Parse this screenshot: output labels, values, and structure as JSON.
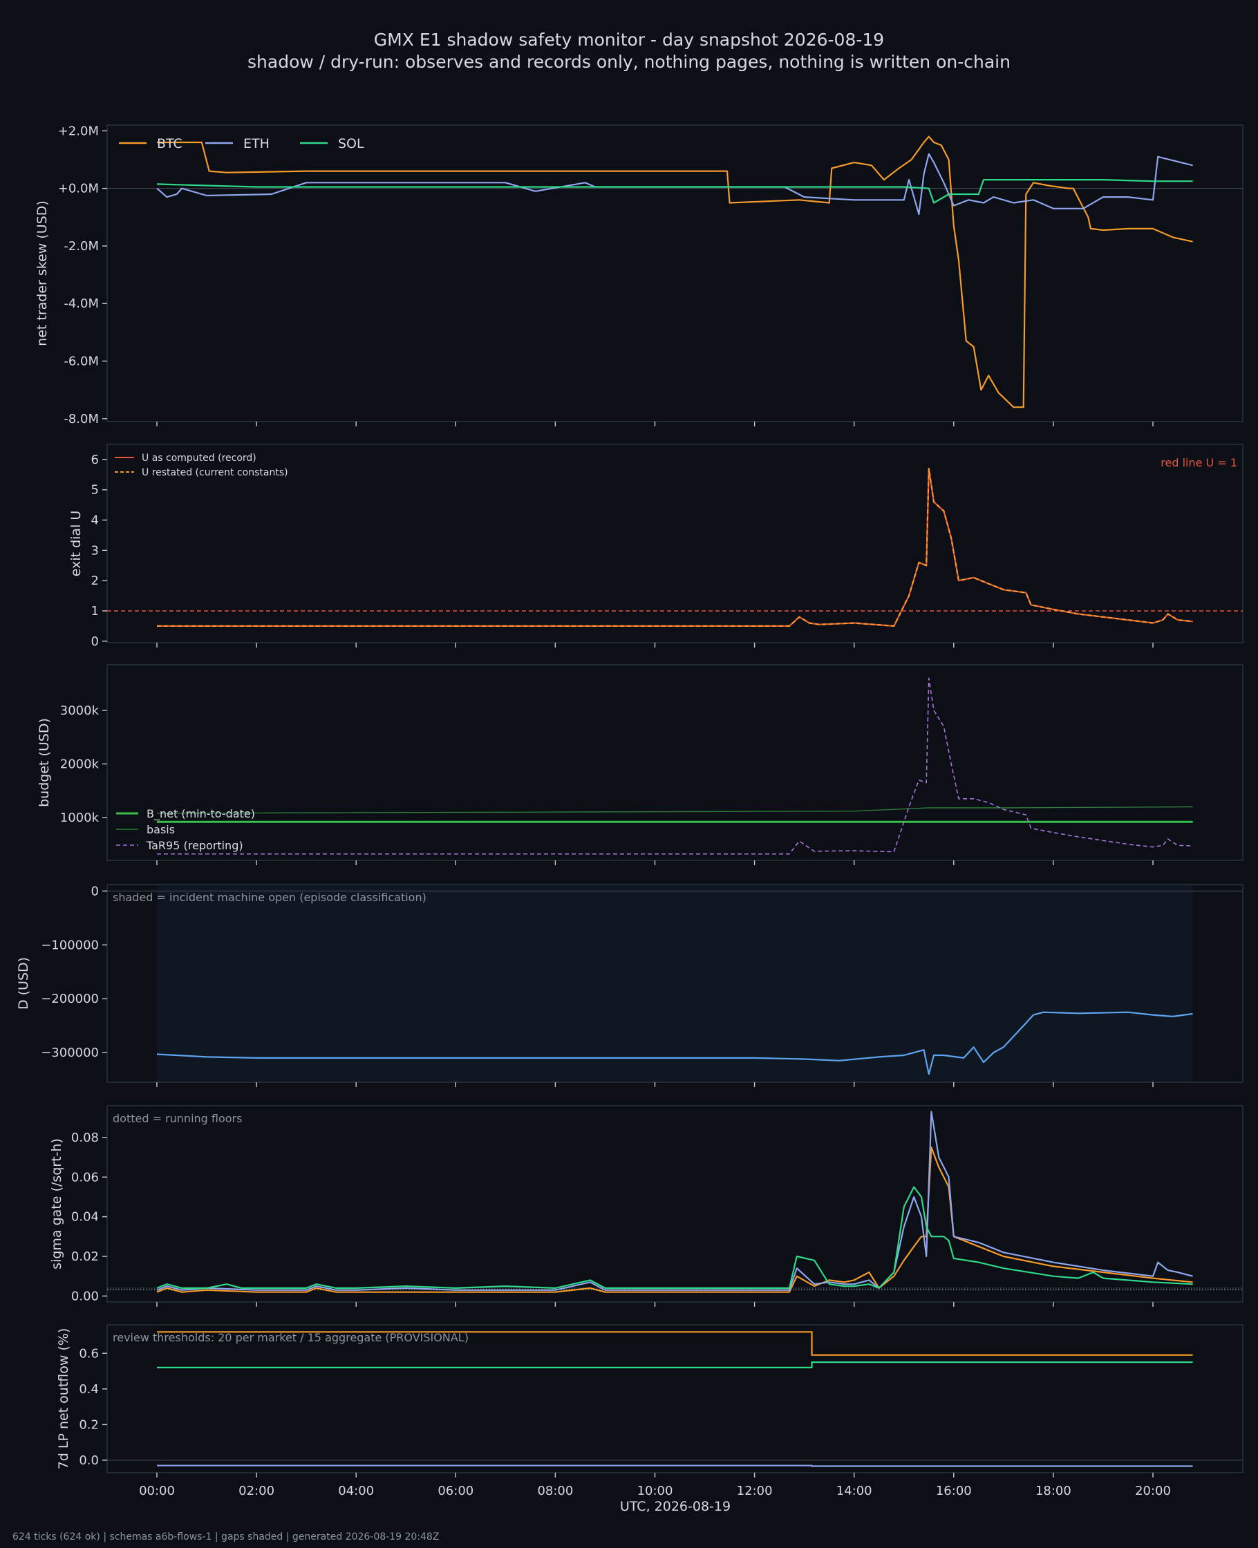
{
  "title": "GMX E1 shadow safety monitor - day snapshot 2026-08-19",
  "subtitle": "shadow / dry-run: observes and records only, nothing pages, nothing is written on-chain",
  "footer": "624 ticks (624 ok) | schemas a6b-flows-1 | gaps shaded | generated 2026-08-19 20:48Z",
  "xlabel": "UTC, 2026-08-19",
  "colors": {
    "btc": "#f59a2b",
    "eth": "#8fa6ee",
    "sol": "#2fd98a",
    "red": "#e8563f",
    "green": "#35c04b",
    "purple": "#a874d6",
    "blue": "#5fa4f0",
    "bg": "#0c0f15"
  },
  "chart_data": [
    {
      "type": "line",
      "ylabel": "net trader skew (USD)",
      "ylim": [
        -8.1,
        2.2
      ],
      "yticks": [
        2,
        0,
        -2,
        -4,
        -6,
        -8
      ],
      "yticklabels": [
        "+2.0M",
        "+0.0M",
        "-2.0M",
        "-4.0M",
        "-6.0M",
        "-8.0M"
      ],
      "legend": "top-left",
      "zero_line": true,
      "series": [
        {
          "name": "BTC",
          "color": "#f59a2b",
          "x": [
            0,
            0.9,
            1.05,
            1.4,
            3,
            6.3,
            8.9,
            11.45,
            11.5,
            12.9,
            13.5,
            13.55,
            14,
            14.35,
            14.6,
            14.9,
            15.15,
            15.4,
            15.5,
            15.6,
            15.75,
            15.9,
            16,
            16.1,
            16.25,
            16.4,
            16.55,
            16.7,
            16.9,
            17.2,
            17.4,
            17.45,
            17.6,
            17.9,
            18.3,
            18.4,
            18.7,
            18.75,
            19,
            19.5,
            20,
            20.4,
            20.8
          ],
          "values": [
            1.6,
            1.6,
            0.6,
            0.55,
            0.6,
            0.6,
            0.6,
            0.6,
            -0.5,
            -0.4,
            -0.5,
            0.7,
            0.9,
            0.8,
            0.3,
            0.7,
            1,
            1.6,
            1.8,
            1.6,
            1.5,
            1,
            -1.3,
            -2.5,
            -5.3,
            -5.5,
            -7.0,
            -6.5,
            -7.1,
            -7.6,
            -7.6,
            -0.2,
            0.2,
            0.1,
            0.0,
            0.0,
            -1.0,
            -1.4,
            -1.45,
            -1.4,
            -1.4,
            -1.7,
            -1.85
          ]
        },
        {
          "name": "ETH",
          "color": "#8fa6ee",
          "x": [
            0,
            0.2,
            0.4,
            0.5,
            1.0,
            2.3,
            3.0,
            4.0,
            7.0,
            7.6,
            8.6,
            8.8,
            9.5,
            12.6,
            13.0,
            14.0,
            15.0,
            15.1,
            15.3,
            15.4,
            15.5,
            15.6,
            15.8,
            16.0,
            16.3,
            16.6,
            16.8,
            17.2,
            17.6,
            18.0,
            18.6,
            19.0,
            19.5,
            20.0,
            20.1,
            20.8
          ],
          "values": [
            0,
            -0.3,
            -0.2,
            0,
            -0.25,
            -0.2,
            0.2,
            0.2,
            0.2,
            -0.1,
            0.2,
            0.05,
            0.05,
            0.05,
            -0.3,
            -0.4,
            -0.4,
            0.3,
            -0.9,
            0.5,
            1.2,
            0.9,
            0.2,
            -0.6,
            -0.4,
            -0.5,
            -0.3,
            -0.5,
            -0.4,
            -0.7,
            -0.7,
            -0.3,
            -0.3,
            -0.4,
            1.1,
            0.8
          ]
        },
        {
          "name": "SOL",
          "color": "#2fd98a",
          "x": [
            0,
            1,
            2,
            4,
            6,
            8,
            10,
            12,
            13,
            14,
            15,
            15.5,
            15.6,
            15.9,
            16.5,
            16.6,
            17,
            18,
            19,
            20,
            20.8
          ],
          "values": [
            0.15,
            0.1,
            0.05,
            0.05,
            0.05,
            0.05,
            0.05,
            0.05,
            0.05,
            0.05,
            0.05,
            0.0,
            -0.5,
            -0.2,
            -0.2,
            0.3,
            0.3,
            0.3,
            0.3,
            0.25,
            0.25
          ]
        }
      ]
    },
    {
      "type": "line",
      "ylabel": "exit dial U",
      "ylim": [
        -0.05,
        6.5
      ],
      "yticks": [
        0,
        1,
        2,
        3,
        4,
        5,
        6
      ],
      "yticklabels": [
        "0",
        "1",
        "2",
        "3",
        "4",
        "5",
        "6"
      ],
      "annotation": "red line U = 1",
      "legend": "top-left",
      "hline": 1,
      "series": [
        {
          "name": "U as computed (record)",
          "color": "#e8563f",
          "style": "solid",
          "x": [
            0,
            1,
            12.7,
            12.9,
            13.1,
            13.3,
            14.0,
            14.8,
            15.1,
            15.3,
            15.45,
            15.5,
            15.6,
            15.8,
            15.95,
            16.1,
            16.4,
            16.7,
            17.0,
            17.45,
            17.55,
            18.0,
            18.5,
            19.5,
            20.0,
            20.2,
            20.3,
            20.5,
            20.8
          ],
          "values": [
            0.5,
            0.5,
            0.5,
            0.8,
            0.6,
            0.55,
            0.6,
            0.5,
            1.5,
            2.6,
            2.5,
            5.7,
            4.6,
            4.3,
            3.4,
            2.0,
            2.1,
            1.9,
            1.7,
            1.6,
            1.2,
            1.05,
            0.9,
            0.7,
            0.6,
            0.7,
            0.9,
            0.7,
            0.65
          ]
        },
        {
          "name": "U restated (current constants)",
          "color": "#f59a2b",
          "style": "dashed",
          "x": [
            0,
            1,
            12.7,
            12.9,
            13.1,
            13.3,
            14.0,
            14.8,
            15.1,
            15.3,
            15.45,
            15.5,
            15.6,
            15.8,
            15.95,
            16.1,
            16.4,
            16.7,
            17.0,
            17.45,
            17.55,
            18.0,
            18.5,
            19.5,
            20.0,
            20.2,
            20.3,
            20.5,
            20.8
          ],
          "values": [
            0.5,
            0.5,
            0.5,
            0.8,
            0.6,
            0.55,
            0.6,
            0.5,
            1.5,
            2.6,
            2.5,
            5.7,
            4.6,
            4.3,
            3.4,
            2.0,
            2.1,
            1.9,
            1.7,
            1.6,
            1.2,
            1.05,
            0.9,
            0.7,
            0.6,
            0.7,
            0.9,
            0.7,
            0.65
          ]
        }
      ]
    },
    {
      "type": "line",
      "ylabel": "budget (USD)",
      "ylim": [
        200,
        3850
      ],
      "yticks": [
        1000,
        2000,
        3000
      ],
      "yticklabels": [
        "1000k",
        "2000k",
        "3000k"
      ],
      "legend": "bottom-left",
      "series": [
        {
          "name": "B_net (min-to-date)",
          "color": "#35c04b",
          "style": "solid",
          "width": 3,
          "x": [
            0,
            20.8
          ],
          "values": [
            920,
            920
          ]
        },
        {
          "name": "basis",
          "color": "#2f7a3c",
          "style": "solid",
          "width": 1.4,
          "x": [
            0,
            14,
            15.5,
            17,
            20.8
          ],
          "values": [
            1080,
            1120,
            1180,
            1180,
            1200
          ]
        },
        {
          "name": "TaR95 (reporting)",
          "color": "#a874d6",
          "style": "dashed",
          "width": 1.6,
          "x": [
            0,
            12.7,
            12.9,
            13.2,
            14.0,
            14.8,
            15.1,
            15.3,
            15.45,
            15.5,
            15.6,
            15.8,
            15.95,
            16.1,
            16.4,
            16.7,
            17.0,
            17.45,
            17.55,
            18.0,
            18.5,
            19.5,
            20.0,
            20.2,
            20.3,
            20.5,
            20.8
          ],
          "values": [
            320,
            320,
            560,
            370,
            380,
            360,
            1200,
            1700,
            1650,
            3600,
            3000,
            2700,
            2000,
            1350,
            1350,
            1280,
            1150,
            1050,
            800,
            720,
            640,
            500,
            450,
            480,
            600,
            480,
            470
          ]
        }
      ]
    },
    {
      "type": "line",
      "ylabel": "D (USD)",
      "ylim": [
        -355000,
        12000
      ],
      "yticks": [
        0,
        -100000,
        -200000,
        -300000
      ],
      "yticklabels": [
        "0",
        "−100000",
        "−200000",
        "−300000"
      ],
      "annotation": "shaded = incident machine open (episode classification)",
      "shade": [
        0,
        20.8
      ],
      "zero_line": true,
      "series": [
        {
          "name": "D",
          "color": "#5fa4f0",
          "x": [
            0,
            1,
            2,
            4,
            6,
            8,
            10,
            12,
            13,
            13.7,
            14.5,
            15.0,
            15.4,
            15.5,
            15.6,
            15.8,
            16.2,
            16.4,
            16.6,
            16.8,
            17.0,
            17.2,
            17.4,
            17.6,
            17.8,
            18.5,
            19.0,
            19.5,
            20.0,
            20.4,
            20.8
          ],
          "values": [
            -303000,
            -308000,
            -310000,
            -310000,
            -310000,
            -310000,
            -310000,
            -310000,
            -312000,
            -315000,
            -308000,
            -305000,
            -295000,
            -340000,
            -305000,
            -305000,
            -310000,
            -290000,
            -318000,
            -300000,
            -290000,
            -270000,
            -250000,
            -230000,
            -225000,
            -227000,
            -226000,
            -225000,
            -230000,
            -233000,
            -228000
          ]
        }
      ]
    },
    {
      "type": "line",
      "ylabel": "sigma gate (/sqrt-h)",
      "ylim": [
        -0.003,
        0.096
      ],
      "yticks": [
        0,
        0.02,
        0.04,
        0.06,
        0.08
      ],
      "yticklabels": [
        "0.00",
        "0.02",
        "0.04",
        "0.06",
        "0.08"
      ],
      "annotation": "dotted = running floors",
      "floors": [
        0.003,
        0.0035,
        0.004
      ],
      "series": [
        {
          "name": "BTC",
          "color": "#f59a2b",
          "x": [
            0,
            0.2,
            0.5,
            1,
            2,
            3,
            3.2,
            3.6,
            4,
            5,
            6,
            7,
            8,
            8.7,
            9,
            10,
            11,
            12,
            12.7,
            12.85,
            13.2,
            13.5,
            13.8,
            14,
            14.3,
            14.5,
            14.8,
            15.0,
            15.2,
            15.35,
            15.45,
            15.55,
            15.7,
            15.8,
            15.9,
            16.0,
            16.5,
            17,
            18,
            19,
            20,
            20.8
          ],
          "values": [
            0.002,
            0.004,
            0.002,
            0.003,
            0.002,
            0.002,
            0.004,
            0.002,
            0.002,
            0.002,
            0.002,
            0.002,
            0.002,
            0.004,
            0.002,
            0.002,
            0.002,
            0.002,
            0.002,
            0.01,
            0.005,
            0.008,
            0.007,
            0.008,
            0.012,
            0.004,
            0.01,
            0.018,
            0.025,
            0.03,
            0.03,
            0.075,
            0.065,
            0.06,
            0.055,
            0.03,
            0.025,
            0.02,
            0.015,
            0.012,
            0.009,
            0.007
          ]
        },
        {
          "name": "ETH",
          "color": "#8fa6ee",
          "x": [
            0,
            0.2,
            0.5,
            1,
            2,
            3,
            3.2,
            3.6,
            4,
            5,
            6,
            7,
            8,
            8.7,
            9,
            10,
            11,
            12,
            12.7,
            12.85,
            13.2,
            13.5,
            13.8,
            14,
            14.3,
            14.5,
            14.8,
            15.0,
            15.2,
            15.35,
            15.45,
            15.55,
            15.7,
            15.8,
            15.9,
            16.0,
            16.5,
            17,
            18,
            19,
            20,
            20.1,
            20.3,
            20.5,
            20.8
          ],
          "values": [
            0.003,
            0.005,
            0.003,
            0.004,
            0.003,
            0.003,
            0.005,
            0.003,
            0.003,
            0.004,
            0.003,
            0.003,
            0.003,
            0.007,
            0.003,
            0.003,
            0.003,
            0.003,
            0.003,
            0.014,
            0.006,
            0.007,
            0.006,
            0.006,
            0.008,
            0.004,
            0.012,
            0.035,
            0.05,
            0.04,
            0.02,
            0.093,
            0.07,
            0.065,
            0.06,
            0.03,
            0.027,
            0.022,
            0.017,
            0.013,
            0.01,
            0.017,
            0.013,
            0.012,
            0.01
          ]
        },
        {
          "name": "SOL",
          "color": "#2fd98a",
          "x": [
            0,
            0.2,
            0.5,
            1,
            1.4,
            1.7,
            2,
            3,
            3.2,
            3.6,
            4,
            5,
            6,
            7,
            8,
            8.7,
            9,
            10,
            11,
            12,
            12.7,
            12.85,
            13.2,
            13.5,
            13.8,
            14,
            14.3,
            14.5,
            14.8,
            15.0,
            15.2,
            15.35,
            15.45,
            15.55,
            15.7,
            15.8,
            15.9,
            16.0,
            16.5,
            17,
            18,
            18.5,
            18.8,
            19,
            20,
            20.8
          ],
          "values": [
            0.004,
            0.006,
            0.004,
            0.004,
            0.006,
            0.004,
            0.004,
            0.004,
            0.006,
            0.004,
            0.004,
            0.005,
            0.004,
            0.005,
            0.004,
            0.008,
            0.004,
            0.004,
            0.004,
            0.004,
            0.004,
            0.02,
            0.018,
            0.006,
            0.005,
            0.005,
            0.006,
            0.004,
            0.012,
            0.045,
            0.055,
            0.05,
            0.035,
            0.03,
            0.03,
            0.03,
            0.028,
            0.019,
            0.017,
            0.014,
            0.01,
            0.009,
            0.012,
            0.009,
            0.007,
            0.006
          ]
        }
      ]
    },
    {
      "type": "line",
      "ylabel": "7d LP net outflow (%)",
      "ylim": [
        -0.07,
        0.76
      ],
      "yticks": [
        0,
        0.2,
        0.4,
        0.6
      ],
      "yticklabels": [
        "0.0",
        "0.2",
        "0.4",
        "0.6"
      ],
      "annotation": "review thresholds: 20 per market / 15 aggregate (PROVISIONAL)",
      "zero_line": true,
      "xticks": [
        0,
        2,
        4,
        6,
        8,
        10,
        12,
        14,
        16,
        18,
        20
      ],
      "xticklabels": [
        "00:00",
        "02:00",
        "04:00",
        "06:00",
        "08:00",
        "10:00",
        "12:00",
        "14:00",
        "16:00",
        "18:00",
        "20:00"
      ],
      "series": [
        {
          "name": "BTC",
          "color": "#f59a2b",
          "x": [
            0,
            13.15,
            13.15,
            20.8
          ],
          "values": [
            0.72,
            0.72,
            0.59,
            0.59
          ]
        },
        {
          "name": "SOL",
          "color": "#2fd98a",
          "x": [
            0,
            13.15,
            13.15,
            20.8
          ],
          "values": [
            0.52,
            0.52,
            0.55,
            0.55
          ]
        },
        {
          "name": "ETH",
          "color": "#8fa6ee",
          "x": [
            0,
            13.15,
            13.15,
            20.8
          ],
          "values": [
            -0.03,
            -0.03,
            -0.033,
            -0.033
          ]
        }
      ]
    }
  ]
}
